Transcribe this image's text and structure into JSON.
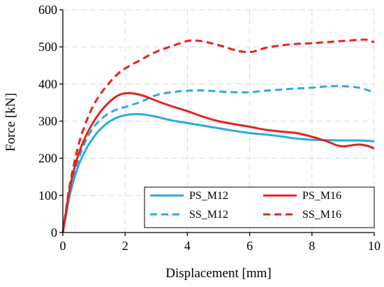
{
  "chart_data": {
    "type": "line",
    "xlabel": "Displacement [mm]",
    "ylabel": "Force [kN]",
    "xlim": [
      0,
      10
    ],
    "ylim": [
      0,
      600
    ],
    "x_ticks": [
      "0",
      "2",
      "4",
      "6",
      "8",
      "10"
    ],
    "y_ticks": [
      "0",
      "100",
      "200",
      "300",
      "400",
      "500",
      "600"
    ],
    "grid": "dashed",
    "legend_position": "bottom-right",
    "series": [
      {
        "name": "PS_M12",
        "color": "#29abe2",
        "style": "solid",
        "points": [
          [
            0,
            0
          ],
          [
            0.1,
            45
          ],
          [
            0.25,
            110
          ],
          [
            0.5,
            180
          ],
          [
            0.75,
            225
          ],
          [
            1.0,
            258
          ],
          [
            1.25,
            282
          ],
          [
            1.5,
            299
          ],
          [
            1.75,
            310
          ],
          [
            2.0,
            316
          ],
          [
            2.3,
            319
          ],
          [
            2.6,
            318
          ],
          [
            3.0,
            312
          ],
          [
            3.5,
            302
          ],
          [
            4.0,
            295
          ],
          [
            4.5,
            288
          ],
          [
            5.0,
            281
          ],
          [
            5.5,
            274
          ],
          [
            6.0,
            268
          ],
          [
            6.5,
            264
          ],
          [
            7.0,
            259
          ],
          [
            7.5,
            253
          ],
          [
            8.0,
            250
          ],
          [
            8.5,
            249
          ],
          [
            9.0,
            248
          ],
          [
            9.5,
            248
          ],
          [
            10.0,
            246
          ]
        ]
      },
      {
        "name": "PS_M16",
        "color": "#e8221b",
        "style": "solid",
        "points": [
          [
            0,
            0
          ],
          [
            0.1,
            55
          ],
          [
            0.25,
            130
          ],
          [
            0.5,
            210
          ],
          [
            0.75,
            262
          ],
          [
            1.0,
            300
          ],
          [
            1.25,
            330
          ],
          [
            1.5,
            352
          ],
          [
            1.75,
            368
          ],
          [
            2.0,
            375
          ],
          [
            2.3,
            374
          ],
          [
            2.6,
            368
          ],
          [
            3.0,
            355
          ],
          [
            3.5,
            340
          ],
          [
            4.0,
            327
          ],
          [
            4.5,
            312
          ],
          [
            5.0,
            300
          ],
          [
            5.5,
            292
          ],
          [
            6.0,
            285
          ],
          [
            6.5,
            277
          ],
          [
            7.0,
            272
          ],
          [
            7.5,
            268
          ],
          [
            8.0,
            258
          ],
          [
            8.5,
            245
          ],
          [
            8.8,
            235
          ],
          [
            9.0,
            232
          ],
          [
            9.2,
            234
          ],
          [
            9.5,
            237
          ],
          [
            9.8,
            233
          ],
          [
            10.0,
            226
          ]
        ]
      },
      {
        "name": "SS_M12",
        "color": "#29abe2",
        "style": "dashed",
        "points": [
          [
            0,
            0
          ],
          [
            0.1,
            50
          ],
          [
            0.25,
            118
          ],
          [
            0.5,
            196
          ],
          [
            0.75,
            250
          ],
          [
            1.0,
            285
          ],
          [
            1.25,
            307
          ],
          [
            1.5,
            322
          ],
          [
            1.75,
            332
          ],
          [
            2.0,
            338
          ],
          [
            2.5,
            352
          ],
          [
            3.0,
            370
          ],
          [
            3.5,
            378
          ],
          [
            4.0,
            382
          ],
          [
            4.5,
            383
          ],
          [
            5.0,
            380
          ],
          [
            5.5,
            378
          ],
          [
            6.0,
            378
          ],
          [
            6.5,
            382
          ],
          [
            7.0,
            385
          ],
          [
            7.5,
            388
          ],
          [
            8.0,
            390
          ],
          [
            8.5,
            394
          ],
          [
            9.0,
            394
          ],
          [
            9.5,
            390
          ],
          [
            10.0,
            378
          ]
        ]
      },
      {
        "name": "SS_M16",
        "color": "#e8221b",
        "style": "dashed",
        "points": [
          [
            0,
            0
          ],
          [
            0.1,
            60
          ],
          [
            0.25,
            140
          ],
          [
            0.5,
            235
          ],
          [
            0.75,
            298
          ],
          [
            1.0,
            345
          ],
          [
            1.25,
            378
          ],
          [
            1.5,
            404
          ],
          [
            1.75,
            426
          ],
          [
            2.0,
            442
          ],
          [
            2.5,
            465
          ],
          [
            3.0,
            487
          ],
          [
            3.5,
            502
          ],
          [
            4.0,
            516
          ],
          [
            4.3,
            517
          ],
          [
            4.6,
            513
          ],
          [
            5.0,
            505
          ],
          [
            5.5,
            492
          ],
          [
            5.8,
            487
          ],
          [
            6.1,
            487
          ],
          [
            6.5,
            497
          ],
          [
            7.0,
            504
          ],
          [
            7.5,
            508
          ],
          [
            8.0,
            510
          ],
          [
            8.5,
            513
          ],
          [
            9.0,
            516
          ],
          [
            9.5,
            519
          ],
          [
            9.8,
            519
          ],
          [
            10.0,
            512
          ]
        ]
      }
    ]
  }
}
